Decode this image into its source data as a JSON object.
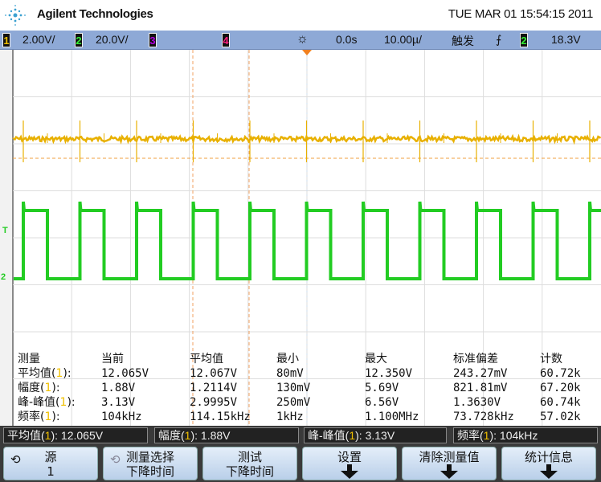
{
  "header": {
    "brand": "Agilent Technologies",
    "datetime": "TUE MAR 01 15:54:15 2011"
  },
  "status": {
    "ch1_num": "1",
    "ch1_scale": "2.00V/",
    "ch2_num": "2",
    "ch2_scale": "20.0V/",
    "ch3_num": "3",
    "ch4_num": "4",
    "delay": "0.0s",
    "timebase": "10.00µ/",
    "trigger_label": "触发",
    "trigger_source": "2",
    "trigger_level": "18.3V"
  },
  "colors": {
    "ch1": "#e8b000",
    "ch2": "#22cc22",
    "ch3": "#9a00c8",
    "ch4": "#e0106a",
    "status_bar": "#8ea9d6"
  },
  "markers": {
    "ch2_trigger": "T",
    "ch2_ground": "2"
  },
  "table": {
    "headers": [
      "测量",
      "当前",
      "平均值",
      "最小",
      "最大",
      "标准偏差",
      "计数"
    ],
    "rows": [
      {
        "name": "平均值(",
        "ch": "1",
        "close": "):",
        "values": [
          "12.065V",
          "12.067V",
          "80mV",
          "12.350V",
          "243.27mV",
          "60.72k"
        ]
      },
      {
        "name": "幅度(",
        "ch": "1",
        "close": "):",
        "values": [
          "1.88V",
          "1.2114V",
          "130mV",
          "5.69V",
          "821.81mV",
          "67.20k"
        ]
      },
      {
        "name": "峰-峰值(",
        "ch": "1",
        "close": "):",
        "values": [
          "3.13V",
          "2.9995V",
          "250mV",
          "6.56V",
          "1.3630V",
          "60.74k"
        ]
      },
      {
        "name": "频率(",
        "ch": "1",
        "close": "):",
        "values": [
          "104kHz",
          "114.15kHz",
          "1kHz",
          "1.100MHz",
          "73.728kHz",
          "57.02k"
        ]
      }
    ]
  },
  "measure_bar": [
    {
      "name": "平均值(",
      "ch": "1",
      "value": "): 12.065V"
    },
    {
      "name": "幅度(",
      "ch": "1",
      "value": "): 1.88V"
    },
    {
      "name": "峰-峰值(",
      "ch": "1",
      "value": "): 3.13V"
    },
    {
      "name": "频率(",
      "ch": "1",
      "value": "): 104kHz"
    }
  ],
  "softkeys": [
    {
      "line1": "源",
      "line2": "1"
    },
    {
      "line1": "测量选择",
      "line2": "下降时间"
    },
    {
      "line1": "测试",
      "line2": "下降时间"
    },
    {
      "line1": "设置"
    },
    {
      "line1": "清除测量值"
    },
    {
      "line1": "统计信息"
    }
  ]
}
